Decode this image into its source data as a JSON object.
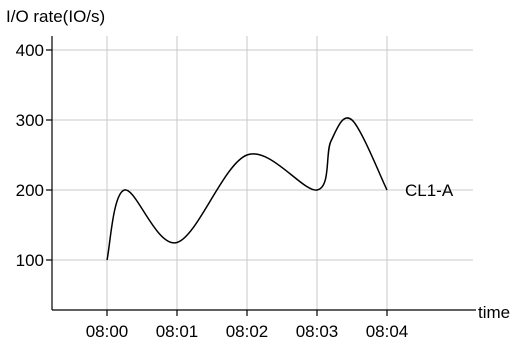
{
  "chart_data": {
    "type": "line",
    "ylabel": "I/O rate(IO/s)",
    "xlabel": "time",
    "ylim": [
      50,
      420
    ],
    "yticks": [
      100,
      200,
      300,
      400
    ],
    "xticks": [
      "08:00",
      "08:01",
      "08:02",
      "08:03",
      "08:04"
    ],
    "grid": true,
    "series": [
      {
        "name": "CL1-A",
        "color": "#000000",
        "points": [
          {
            "x": 0.0,
            "y": 100
          },
          {
            "x": 0.25,
            "y": 200
          },
          {
            "x": 1.0,
            "y": 125
          },
          {
            "x": 2.0,
            "y": 250
          },
          {
            "x": 3.0,
            "y": 200
          },
          {
            "x": 3.2,
            "y": 270
          },
          {
            "x": 3.5,
            "y": 300
          },
          {
            "x": 4.0,
            "y": 200
          }
        ]
      }
    ]
  }
}
